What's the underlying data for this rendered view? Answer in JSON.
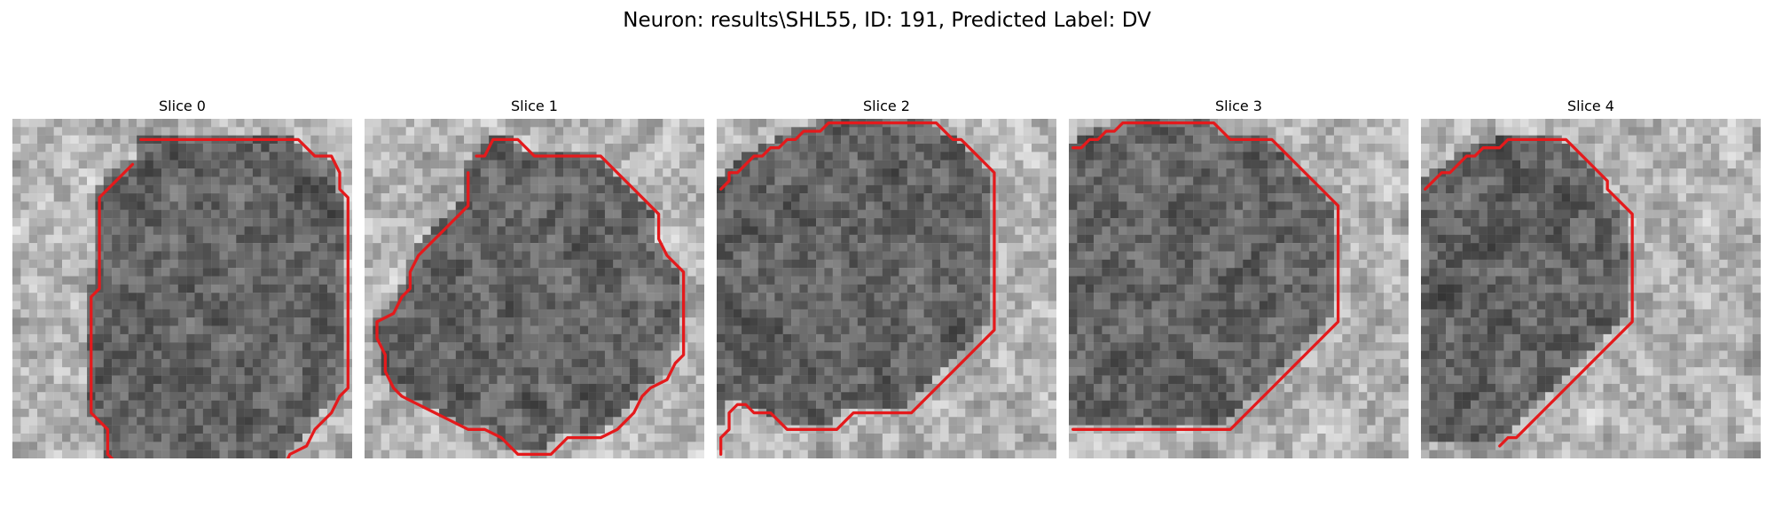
{
  "figure": {
    "title": "Neuron: results\\SHL55, ID: 191, Predicted Label: DV",
    "contour_color": "#e41a1c"
  },
  "panels": [
    {
      "title": "Slice 0",
      "contour": [
        [
          15,
          2
        ],
        [
          34,
          2
        ],
        [
          36,
          4
        ],
        [
          38,
          4
        ],
        [
          39,
          6
        ],
        [
          39,
          8
        ],
        [
          40,
          9
        ],
        [
          40,
          32
        ],
        [
          39,
          33
        ],
        [
          38,
          35
        ],
        [
          36,
          37
        ],
        [
          35,
          39
        ],
        [
          33,
          40
        ],
        [
          32,
          42
        ],
        [
          28,
          42
        ],
        [
          26,
          44
        ],
        [
          15,
          44
        ],
        [
          13,
          42
        ],
        [
          11,
          40
        ],
        [
          11,
          37
        ],
        [
          9,
          35
        ],
        [
          9,
          21
        ],
        [
          10,
          20
        ],
        [
          10,
          9
        ],
        [
          12,
          7
        ],
        [
          14,
          5
        ]
      ]
    },
    {
      "title": "Slice 1",
      "contour": [
        [
          13,
          4
        ],
        [
          14,
          4
        ],
        [
          15,
          2
        ],
        [
          18,
          2
        ],
        [
          20,
          4
        ],
        [
          24,
          4
        ],
        [
          26,
          4
        ],
        [
          28,
          4
        ],
        [
          30,
          6
        ],
        [
          32,
          8
        ],
        [
          34,
          10
        ],
        [
          35,
          11
        ],
        [
          35,
          14
        ],
        [
          36,
          16
        ],
        [
          38,
          18
        ],
        [
          38,
          28
        ],
        [
          37,
          29
        ],
        [
          36,
          31
        ],
        [
          34,
          32
        ],
        [
          33,
          33
        ],
        [
          32,
          35
        ],
        [
          30,
          37
        ],
        [
          28,
          38
        ],
        [
          24,
          38
        ],
        [
          22,
          40
        ],
        [
          18,
          40
        ],
        [
          16,
          38
        ],
        [
          14,
          37
        ],
        [
          12,
          37
        ],
        [
          10,
          36
        ],
        [
          8,
          35
        ],
        [
          6,
          34
        ],
        [
          4,
          33
        ],
        [
          3,
          32
        ],
        [
          2,
          30
        ],
        [
          2,
          28
        ],
        [
          1,
          26
        ],
        [
          1,
          24
        ],
        [
          3,
          23
        ],
        [
          4,
          21
        ],
        [
          5,
          20
        ],
        [
          5,
          18
        ],
        [
          6,
          16
        ],
        [
          8,
          14
        ],
        [
          10,
          12
        ],
        [
          12,
          10
        ],
        [
          12,
          8
        ],
        [
          12,
          6
        ]
      ]
    },
    {
      "title": "Slice 2",
      "contour": [
        [
          0,
          8
        ],
        [
          1,
          7
        ],
        [
          1,
          6
        ],
        [
          2,
          6
        ],
        [
          3,
          5
        ],
        [
          4,
          4
        ],
        [
          5,
          4
        ],
        [
          6,
          3
        ],
        [
          7,
          3
        ],
        [
          8,
          2
        ],
        [
          9,
          2
        ],
        [
          10,
          1
        ],
        [
          11,
          1
        ],
        [
          12,
          1
        ],
        [
          13,
          0
        ],
        [
          14,
          0
        ],
        [
          26,
          0
        ],
        [
          27,
          1
        ],
        [
          28,
          2
        ],
        [
          29,
          2
        ],
        [
          30,
          3
        ],
        [
          31,
          4
        ],
        [
          32,
          5
        ],
        [
          33,
          6
        ],
        [
          33,
          7
        ],
        [
          33,
          8
        ],
        [
          33,
          9
        ],
        [
          33,
          10
        ],
        [
          33,
          11
        ],
        [
          33,
          12
        ],
        [
          33,
          13
        ],
        [
          33,
          14
        ],
        [
          33,
          15
        ],
        [
          33,
          16
        ],
        [
          33,
          17
        ],
        [
          33,
          18
        ],
        [
          33,
          19
        ],
        [
          33,
          20
        ],
        [
          33,
          21
        ],
        [
          33,
          22
        ],
        [
          33,
          23
        ],
        [
          33,
          24
        ],
        [
          33,
          25
        ],
        [
          32,
          26
        ],
        [
          31,
          27
        ],
        [
          30,
          28
        ],
        [
          29,
          29
        ],
        [
          28,
          30
        ],
        [
          27,
          31
        ],
        [
          26,
          32
        ],
        [
          25,
          33
        ],
        [
          24,
          34
        ],
        [
          23,
          35
        ],
        [
          22,
          35
        ],
        [
          21,
          35
        ],
        [
          20,
          35
        ],
        [
          19,
          35
        ],
        [
          18,
          35
        ],
        [
          17,
          35
        ],
        [
          16,
          35
        ],
        [
          15,
          36
        ],
        [
          14,
          37
        ],
        [
          13,
          37
        ],
        [
          12,
          37
        ],
        [
          11,
          37
        ],
        [
          10,
          37
        ],
        [
          9,
          37
        ],
        [
          8,
          37
        ],
        [
          7,
          36
        ],
        [
          6,
          35
        ],
        [
          5,
          35
        ],
        [
          4,
          35
        ],
        [
          3,
          34
        ],
        [
          2,
          34
        ],
        [
          1,
          35
        ],
        [
          1,
          36
        ],
        [
          1,
          37
        ],
        [
          0,
          38
        ],
        [
          0,
          39
        ],
        [
          0,
          40
        ]
      ]
    },
    {
      "title": "Slice 3",
      "contour": [
        [
          0,
          3
        ],
        [
          1,
          3
        ],
        [
          2,
          2
        ],
        [
          3,
          2
        ],
        [
          4,
          1
        ],
        [
          5,
          1
        ],
        [
          6,
          0
        ],
        [
          17,
          0
        ],
        [
          18,
          1
        ],
        [
          19,
          2
        ],
        [
          24,
          2
        ],
        [
          25,
          3
        ],
        [
          26,
          4
        ],
        [
          27,
          5
        ],
        [
          28,
          6
        ],
        [
          29,
          7
        ],
        [
          30,
          8
        ],
        [
          31,
          9
        ],
        [
          32,
          10
        ],
        [
          32,
          11
        ],
        [
          32,
          12
        ],
        [
          32,
          13
        ],
        [
          32,
          14
        ],
        [
          32,
          15
        ],
        [
          32,
          16
        ],
        [
          32,
          17
        ],
        [
          32,
          18
        ],
        [
          32,
          19
        ],
        [
          32,
          20
        ],
        [
          32,
          21
        ],
        [
          32,
          22
        ],
        [
          32,
          23
        ],
        [
          32,
          24
        ],
        [
          31,
          25
        ],
        [
          30,
          26
        ],
        [
          29,
          27
        ],
        [
          28,
          28
        ],
        [
          27,
          29
        ],
        [
          26,
          30
        ],
        [
          25,
          31
        ],
        [
          24,
          32
        ],
        [
          23,
          33
        ],
        [
          22,
          34
        ],
        [
          21,
          35
        ],
        [
          20,
          36
        ],
        [
          19,
          37
        ],
        [
          18,
          37
        ],
        [
          17,
          37
        ],
        [
          16,
          37
        ],
        [
          15,
          37
        ],
        [
          14,
          37
        ],
        [
          13,
          37
        ],
        [
          12,
          37
        ],
        [
          11,
          37
        ],
        [
          10,
          37
        ],
        [
          9,
          37
        ],
        [
          8,
          37
        ],
        [
          7,
          37
        ],
        [
          6,
          37
        ],
        [
          5,
          37
        ],
        [
          4,
          37
        ],
        [
          3,
          37
        ],
        [
          2,
          37
        ],
        [
          1,
          37
        ],
        [
          0,
          37
        ]
      ]
    },
    {
      "title": "Slice 4",
      "contour": [
        [
          0,
          8
        ],
        [
          1,
          7
        ],
        [
          2,
          6
        ],
        [
          3,
          6
        ],
        [
          4,
          5
        ],
        [
          5,
          4
        ],
        [
          6,
          4
        ],
        [
          7,
          3
        ],
        [
          8,
          3
        ],
        [
          9,
          3
        ],
        [
          10,
          2
        ],
        [
          11,
          2
        ],
        [
          12,
          2
        ],
        [
          13,
          2
        ],
        [
          14,
          2
        ],
        [
          15,
          2
        ],
        [
          16,
          2
        ],
        [
          17,
          2
        ],
        [
          18,
          3
        ],
        [
          19,
          4
        ],
        [
          20,
          5
        ],
        [
          21,
          6
        ],
        [
          22,
          7
        ],
        [
          22,
          8
        ],
        [
          23,
          9
        ],
        [
          24,
          10
        ],
        [
          25,
          11
        ],
        [
          25,
          12
        ],
        [
          25,
          13
        ],
        [
          25,
          14
        ],
        [
          25,
          15
        ],
        [
          25,
          16
        ],
        [
          25,
          17
        ],
        [
          25,
          18
        ],
        [
          25,
          19
        ],
        [
          25,
          20
        ],
        [
          25,
          21
        ],
        [
          25,
          22
        ],
        [
          25,
          23
        ],
        [
          25,
          24
        ],
        [
          24,
          25
        ],
        [
          23,
          26
        ],
        [
          22,
          27
        ],
        [
          21,
          28
        ],
        [
          20,
          29
        ],
        [
          19,
          30
        ],
        [
          18,
          31
        ],
        [
          17,
          32
        ],
        [
          16,
          33
        ],
        [
          15,
          34
        ],
        [
          14,
          35
        ],
        [
          13,
          36
        ],
        [
          12,
          37
        ],
        [
          11,
          38
        ],
        [
          10,
          38
        ],
        [
          9,
          39
        ]
      ]
    }
  ]
}
